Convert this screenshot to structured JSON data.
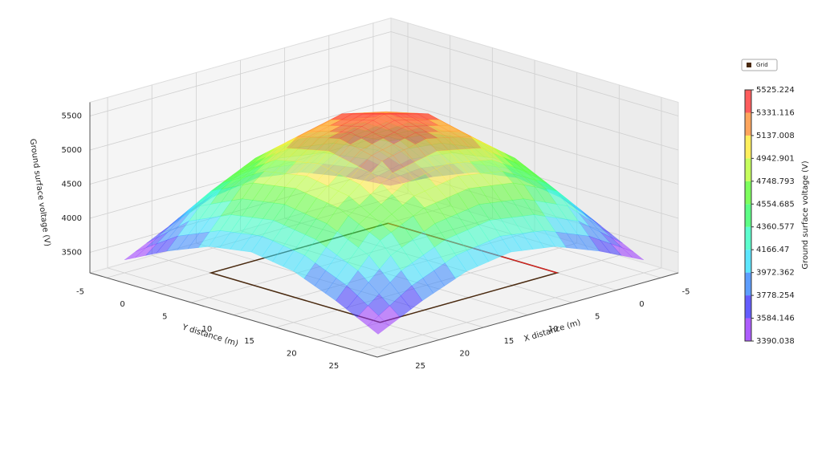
{
  "chart_data": {
    "type": "surface3d",
    "xlabel": "X distance (m)",
    "ylabel": "Y distance (m)",
    "zlabel": "Ground surface voltage (V)",
    "x": [
      -5,
      0,
      5,
      10,
      15,
      20,
      25
    ],
    "y": [
      -5,
      0,
      5,
      10,
      15,
      20,
      25
    ],
    "z": [
      [
        3390,
        3700,
        3950,
        4050,
        3950,
        3700,
        3390
      ],
      [
        3700,
        4400,
        4700,
        4800,
        4700,
        4400,
        3700
      ],
      [
        3950,
        4700,
        5200,
        5350,
        5200,
        4700,
        3950
      ],
      [
        4050,
        4800,
        5350,
        5525,
        5350,
        4800,
        4050
      ],
      [
        3950,
        4700,
        5200,
        5350,
        5200,
        4700,
        3950
      ],
      [
        3700,
        4400,
        4700,
        4800,
        4700,
        4400,
        3700
      ],
      [
        3390,
        3700,
        3950,
        4050,
        3950,
        3700,
        3390
      ]
    ],
    "xlim": [
      -7,
      27
    ],
    "ylim": [
      -7,
      27
    ],
    "zlim": [
      3200,
      5700
    ],
    "xticks": [
      -5,
      0,
      5,
      10,
      15,
      20,
      25
    ],
    "yticks": [
      -5,
      0,
      5,
      10,
      15,
      20,
      25
    ],
    "zticks": [
      3500,
      4000,
      4500,
      5000,
      5500
    ],
    "grid": true,
    "legend": "upper right",
    "series": [
      {
        "name": "Grid",
        "color": "#4a2a10",
        "x": [
          0,
          20
        ],
        "y": [
          0,
          20
        ]
      }
    ],
    "colorbar": {
      "label": "Ground surface voltage (V)",
      "clim": [
        3390.038,
        5525.224
      ],
      "ticks": [
        3390.038,
        3584.146,
        3778.254,
        3972.362,
        4166.47,
        4360.577,
        4554.685,
        4748.793,
        4942.901,
        5137.008,
        5331.116,
        5525.224
      ]
    }
  }
}
